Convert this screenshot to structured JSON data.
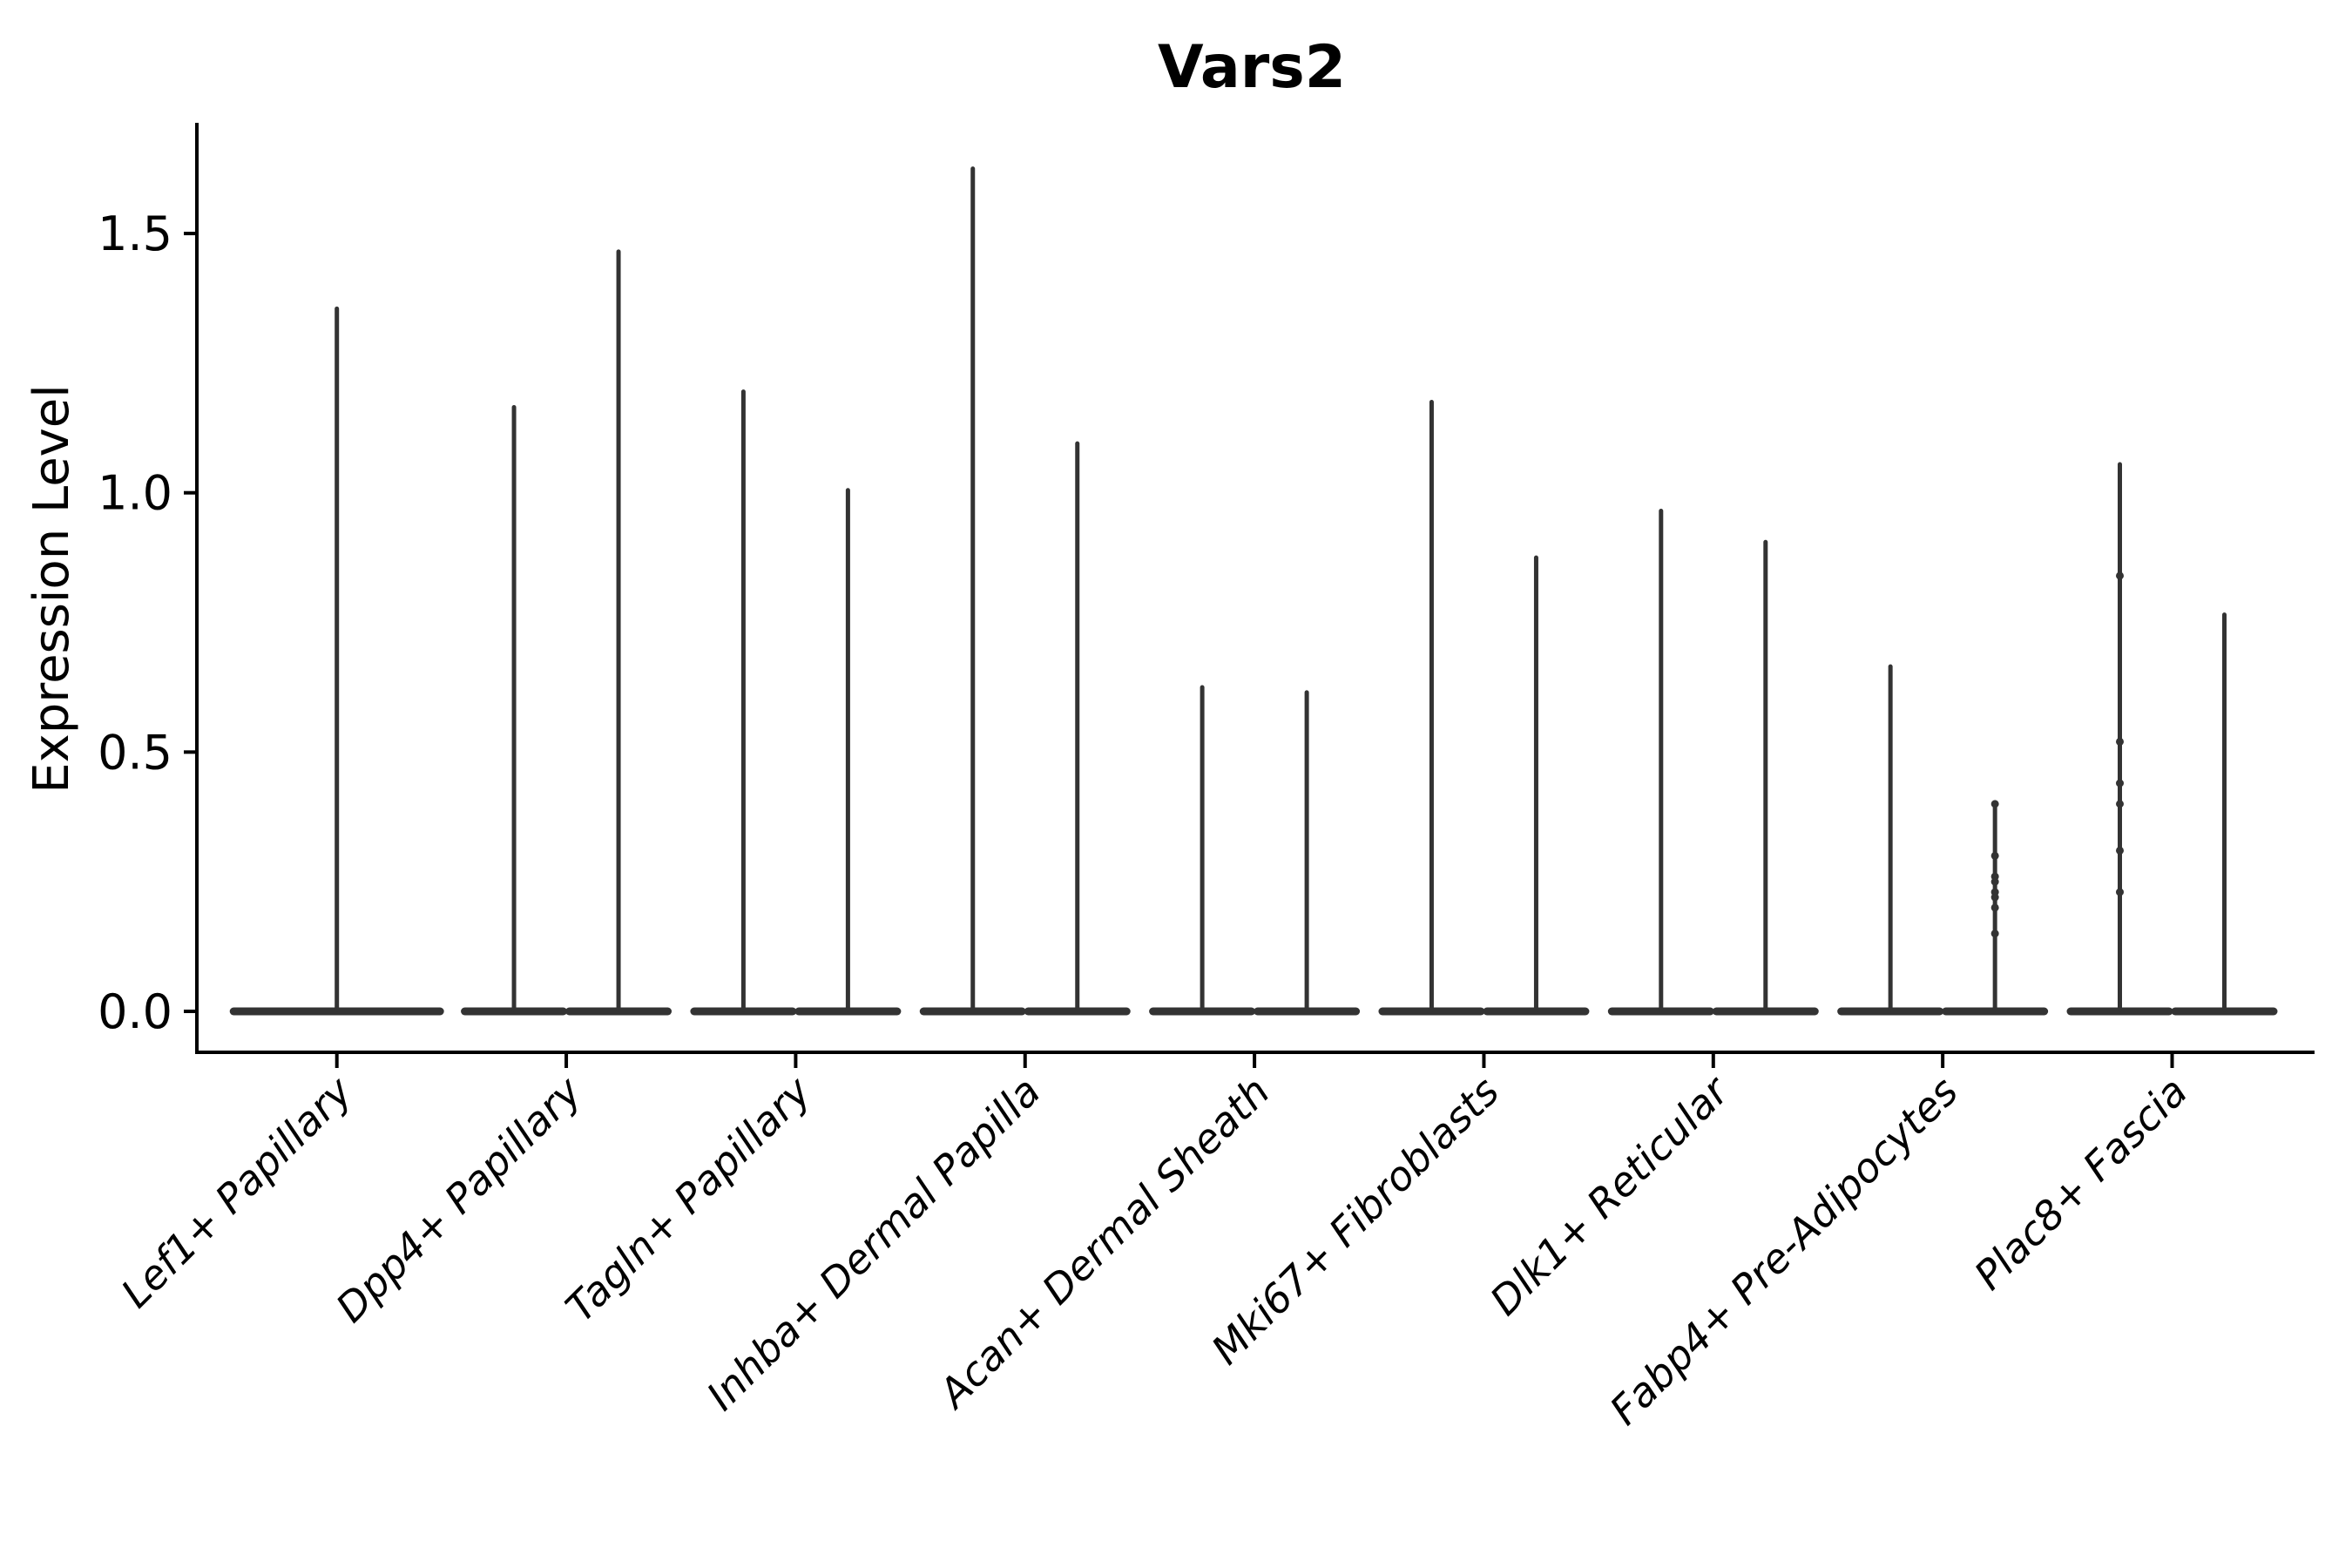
{
  "chart_data": {
    "type": "violin",
    "title": "Vars2",
    "ylabel": "Expression Level",
    "xlabel": "",
    "yticks": [
      {
        "label": "0.0",
        "value": 0.0
      },
      {
        "label": "0.5",
        "value": 0.5
      },
      {
        "label": "1.0",
        "value": 1.0
      },
      {
        "label": "1.5",
        "value": 1.5
      }
    ],
    "ylim": [
      -0.075,
      1.7
    ],
    "grid": false,
    "legend": "none",
    "x_tick_rotation_deg": 45,
    "colors": {
      "violin_ink": "#333333",
      "axis": "#000000",
      "background": "#ffffff"
    },
    "description": "Each category shows one or two very thin violins: a wide flat body at expression 0 with a thin spike up to the maximum expression value. Small jitter points are visible on two violins.",
    "categories": [
      {
        "label": "Lef1+ Papillary",
        "violin_maxima": [
          1.36
        ],
        "points": [
          []
        ]
      },
      {
        "label": "Dpp4+ Papillary",
        "violin_maxima": [
          1.17,
          1.47
        ],
        "points": [
          [],
          []
        ]
      },
      {
        "label": "Tagln+ Papillary",
        "violin_maxima": [
          1.2,
          1.01
        ],
        "points": [
          [],
          []
        ]
      },
      {
        "label": "Inhba+ Dermal Papilla",
        "violin_maxima": [
          1.63,
          1.1
        ],
        "points": [
          [],
          []
        ]
      },
      {
        "label": "Acan+ Dermal Sheath",
        "violin_maxima": [
          0.63,
          0.62
        ],
        "points": [
          [],
          []
        ]
      },
      {
        "label": "Mki67+ Fibroblasts",
        "violin_maxima": [
          1.18,
          0.88
        ],
        "points": [
          [],
          []
        ]
      },
      {
        "label": "Dlk1+ Reticular",
        "violin_maxima": [
          0.97,
          0.91
        ],
        "points": [
          [],
          []
        ]
      },
      {
        "label": "Fabp4+ Pre-Adipocytes",
        "violin_maxima": [
          0.67,
          0.4
        ],
        "points": [
          [],
          [
            0.4,
            0.3,
            0.26,
            0.25,
            0.23,
            0.22,
            0.2,
            0.15
          ]
        ]
      },
      {
        "label": "Plac8+ Fascia",
        "violin_maxima": [
          1.06,
          0.77
        ],
        "points": [
          [
            0.84,
            0.52,
            0.44,
            0.4,
            0.31,
            0.23
          ],
          []
        ]
      }
    ]
  }
}
